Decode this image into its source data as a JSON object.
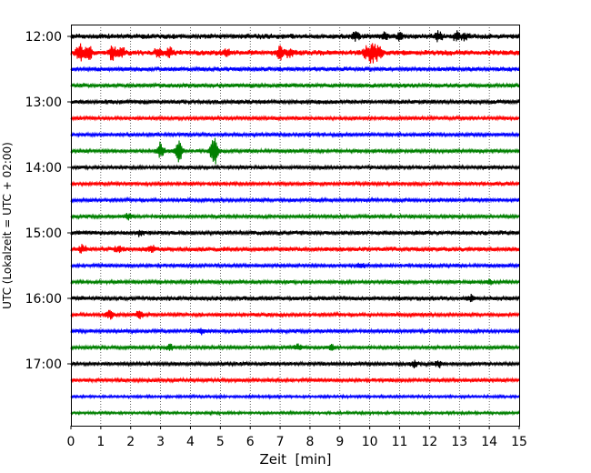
{
  "chart_data": {
    "type": "line",
    "title": "",
    "xlabel": "Zeit  [min]",
    "ylabel": "UTC (Lokalzeit = UTC + 02:00)",
    "xlim": [
      0,
      15
    ],
    "x_ticks": [
      "0",
      "1",
      "2",
      "3",
      "4",
      "5",
      "6",
      "7",
      "8",
      "9",
      "10",
      "11",
      "12",
      "13",
      "14",
      "15"
    ],
    "y_ticks": [
      "12:00",
      "13:00",
      "14:00",
      "15:00",
      "16:00",
      "17:00"
    ],
    "grid": "vertical dotted at each minute",
    "trace_colors": [
      "#000000",
      "#ff0000",
      "#0000ff",
      "#008000"
    ],
    "series": [
      {
        "start": "12:00",
        "amp": 3.0,
        "events": [
          [
            9.5,
            4.5
          ],
          [
            10.5,
            3.0
          ],
          [
            11.0,
            3.5
          ],
          [
            12.3,
            5.0
          ],
          [
            12.9,
            4.0
          ],
          [
            13.2,
            3.5
          ]
        ]
      },
      {
        "start": "12:15",
        "amp": 3.0,
        "events": [
          [
            0.3,
            9
          ],
          [
            0.6,
            7
          ],
          [
            1.4,
            8
          ],
          [
            1.7,
            6
          ],
          [
            2.9,
            4
          ],
          [
            3.3,
            5
          ],
          [
            5.2,
            4
          ],
          [
            7.0,
            6
          ],
          [
            7.3,
            4
          ],
          [
            9.9,
            7
          ],
          [
            10.1,
            9
          ],
          [
            10.3,
            6
          ]
        ]
      },
      {
        "start": "12:30",
        "amp": 2.5,
        "events": []
      },
      {
        "start": "12:45",
        "amp": 2.5,
        "events": []
      },
      {
        "start": "13:00",
        "amp": 2.5,
        "events": []
      },
      {
        "start": "13:15",
        "amp": 2.0,
        "events": []
      },
      {
        "start": "13:30",
        "amp": 2.0,
        "events": []
      },
      {
        "start": "13:45",
        "amp": 2.0,
        "events": [
          [
            3.0,
            9
          ],
          [
            3.6,
            12
          ],
          [
            4.8,
            16
          ]
        ]
      },
      {
        "start": "14:00",
        "amp": 2.0,
        "events": []
      },
      {
        "start": "14:15",
        "amp": 2.0,
        "events": []
      },
      {
        "start": "14:30",
        "amp": 2.0,
        "events": []
      },
      {
        "start": "14:45",
        "amp": 2.0,
        "events": [
          [
            1.9,
            2.5
          ]
        ]
      },
      {
        "start": "15:00",
        "amp": 2.5,
        "events": [
          [
            2.3,
            3
          ]
        ]
      },
      {
        "start": "15:15",
        "amp": 2.5,
        "events": [
          [
            0.4,
            4
          ],
          [
            1.6,
            3
          ],
          [
            2.7,
            3
          ]
        ]
      },
      {
        "start": "15:30",
        "amp": 2.0,
        "events": [
          [
            9.7,
            3
          ]
        ]
      },
      {
        "start": "15:45",
        "amp": 2.0,
        "events": [
          [
            14.0,
            2.5
          ]
        ]
      },
      {
        "start": "16:00",
        "amp": 2.5,
        "events": [
          [
            13.4,
            3
          ]
        ]
      },
      {
        "start": "16:15",
        "amp": 2.0,
        "events": [
          [
            1.3,
            4
          ],
          [
            2.3,
            4
          ]
        ]
      },
      {
        "start": "16:30",
        "amp": 2.0,
        "events": [
          [
            4.4,
            2.5
          ]
        ]
      },
      {
        "start": "16:45",
        "amp": 2.0,
        "events": [
          [
            3.3,
            3
          ],
          [
            7.6,
            3
          ],
          [
            8.7,
            3
          ]
        ]
      },
      {
        "start": "17:00",
        "amp": 2.0,
        "events": [
          [
            11.5,
            3.5
          ],
          [
            12.3,
            3
          ]
        ]
      },
      {
        "start": "17:15",
        "amp": 2.0,
        "events": []
      },
      {
        "start": "17:30",
        "amp": 1.5,
        "events": []
      },
      {
        "start": "17:45",
        "amp": 1.5,
        "events": []
      }
    ]
  }
}
